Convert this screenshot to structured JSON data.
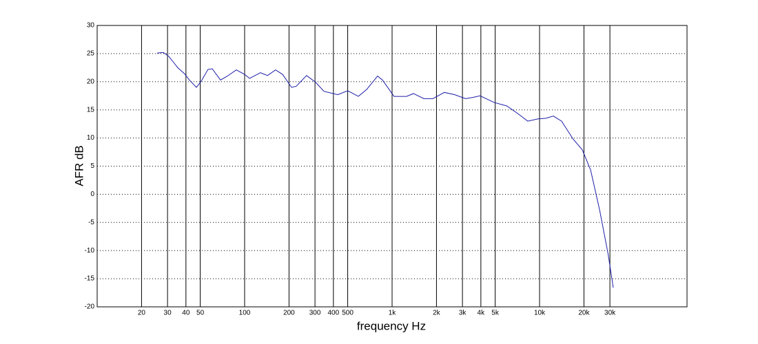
{
  "chart_data": {
    "type": "line",
    "xlabel": "frequency  Hz",
    "ylabel": "AFR dB",
    "xscale": "log",
    "grid": true,
    "xlim": [
      10,
      100000
    ],
    "ylim": [
      -20,
      30
    ],
    "xticks": [
      20,
      30,
      40,
      50,
      100,
      200,
      300,
      400,
      500,
      {
        "value": 1000,
        "label": "1k"
      },
      {
        "value": 2000,
        "label": "2k"
      },
      {
        "value": 3000,
        "label": "3k"
      },
      {
        "value": 4000,
        "label": "4k"
      },
      {
        "value": 5000,
        "label": "5k"
      },
      {
        "value": 10000,
        "label": "10k"
      },
      {
        "value": 20000,
        "label": "20k"
      },
      {
        "value": 30000,
        "label": "30k"
      }
    ],
    "yticks": [
      -20,
      -15,
      -10,
      -5,
      0,
      5,
      10,
      15,
      20,
      25,
      30
    ],
    "x": [
      25.5,
      28.1,
      30.6,
      35.2,
      39.2,
      42.2,
      47.1,
      50.8,
      56.5,
      60.3,
      68.6,
      76.4,
      87.8,
      100,
      108,
      128,
      143,
      162,
      181,
      208,
      224,
      263,
      303,
      345,
      428,
      500,
      590,
      671,
      797,
      861,
      1030,
      1255,
      1395,
      1641,
      1890,
      2260,
      2660,
      3140,
      3500,
      3950,
      4330,
      4940,
      6000,
      7070,
      8310,
      9790,
      11000,
      12400,
      14100,
      16900,
      19500,
      22200,
      25600,
      29200,
      31600
    ],
    "series": [
      {
        "color": "#1c1ca8",
        "values": [
          25.1,
          25.2,
          24.5,
          22.5,
          21.4,
          20.3,
          19.0,
          20.1,
          22.2,
          22.3,
          20.3,
          21.0,
          22.1,
          21.3,
          20.6,
          21.6,
          21.1,
          22.1,
          21.3,
          19.0,
          19.2,
          21.1,
          19.9,
          18.3,
          17.7,
          18.4,
          17.4,
          18.6,
          21.0,
          20.3,
          17.4,
          17.4,
          17.9,
          17.0,
          17.0,
          18.1,
          17.7,
          17.0,
          17.2,
          17.5,
          17.0,
          16.3,
          15.7,
          14.4,
          13.0,
          13.4,
          13.5,
          13.9,
          13.0,
          9.8,
          7.9,
          4.3,
          -2.9,
          -10.7,
          -16.6
        ]
      }
    ]
  }
}
